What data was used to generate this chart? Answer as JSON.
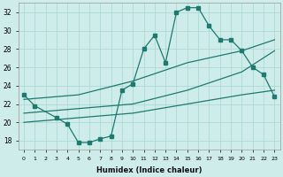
{
  "title": "",
  "xlabel": "Humidex (Indice chaleur)",
  "bg_color": "#ceecea",
  "grid_color": "#aed8d4",
  "line_color": "#1e7a6e",
  "xlim": [
    -0.5,
    23.5
  ],
  "ylim": [
    17,
    33
  ],
  "yticks": [
    18,
    20,
    22,
    24,
    26,
    28,
    30,
    32
  ],
  "xticks": [
    0,
    1,
    2,
    3,
    4,
    5,
    6,
    7,
    8,
    9,
    10,
    11,
    12,
    13,
    14,
    15,
    16,
    17,
    18,
    19,
    20,
    21,
    22,
    23
  ],
  "line1_x": [
    0,
    1,
    3,
    4,
    5,
    6,
    7,
    8,
    9,
    10,
    11,
    12,
    13,
    14,
    15,
    16,
    17,
    18,
    19,
    20,
    21,
    22,
    23
  ],
  "line1_y": [
    23.0,
    21.8,
    20.5,
    19.8,
    17.8,
    17.8,
    18.2,
    18.5,
    23.5,
    24.2,
    28.0,
    29.5,
    26.5,
    32.0,
    32.5,
    32.5,
    30.5,
    29.0,
    29.0,
    27.8,
    26.0,
    25.2,
    22.8
  ],
  "line2_x": [
    0,
    5,
    10,
    15,
    20,
    23
  ],
  "line2_y": [
    22.5,
    23.0,
    24.5,
    26.5,
    27.8,
    29.0
  ],
  "line3_x": [
    0,
    5,
    10,
    15,
    20,
    23
  ],
  "line3_y": [
    21.0,
    21.5,
    22.0,
    23.5,
    25.5,
    27.8
  ],
  "line4_x": [
    0,
    5,
    10,
    15,
    20,
    23
  ],
  "line4_y": [
    20.0,
    20.5,
    21.0,
    22.0,
    23.0,
    23.5
  ]
}
